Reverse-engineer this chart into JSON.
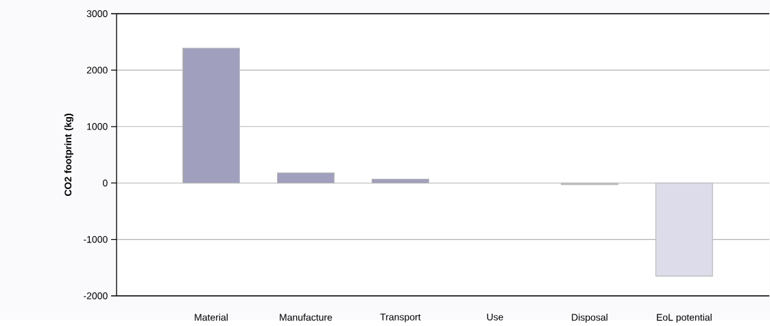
{
  "chart_data": {
    "type": "bar",
    "ylabel": "CO2 footprint (kg)",
    "categories": [
      "Material",
      "Manufacture",
      "Transport",
      "Use",
      "Disposal",
      "EoL potential"
    ],
    "values": [
      2390,
      180,
      70,
      0,
      -30,
      -1650
    ],
    "colors": [
      "#a09fbd",
      "#a09fbd",
      "#a09fbd",
      "#a09fbd",
      "#bcbcbc",
      "#dcdcea"
    ],
    "ylim": [
      -2000,
      3000
    ],
    "yticks": [
      -2000,
      -1000,
      0,
      1000,
      2000,
      3000
    ],
    "grid": "y"
  }
}
